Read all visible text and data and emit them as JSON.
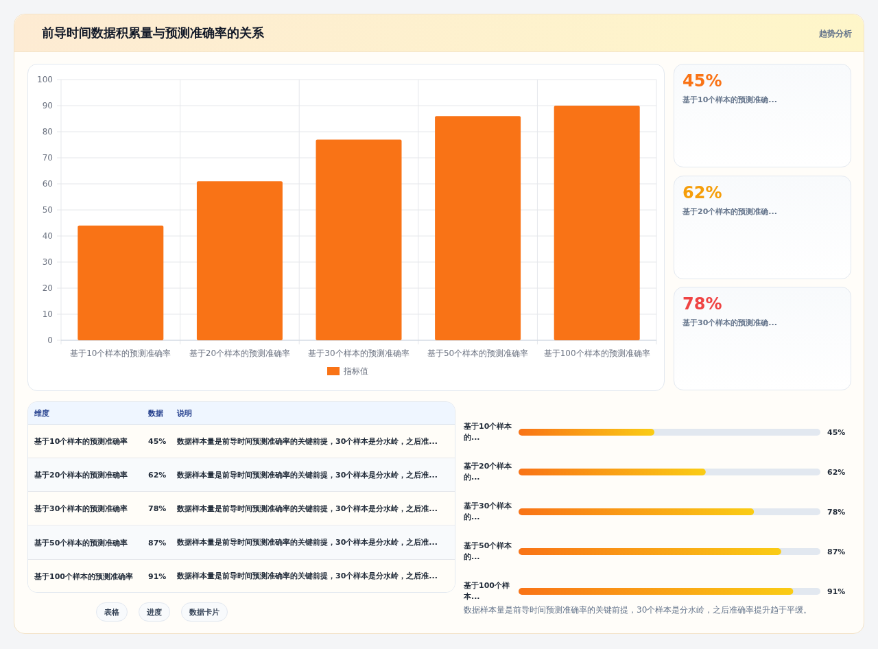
{
  "chart_data": [
    {
      "type": "bar",
      "title": "前导时间数据积累量与预测准确率的关系",
      "categories": [
        "基于10个样本的预测准确率",
        "基于20个样本的预测准确率",
        "基于30个样本的预测准确率",
        "基于50个样本的预测准确率",
        "基于100个样本的预测准确率"
      ],
      "series": [
        {
          "name": "指标值",
          "color": "#f97316",
          "values": [
            44,
            61,
            77,
            86,
            90
          ]
        }
      ],
      "ylim": [
        0,
        100
      ],
      "yticks": [
        0,
        10,
        20,
        30,
        40,
        50,
        60,
        70,
        80,
        90,
        100
      ],
      "grid": true,
      "legend": "bottom"
    },
    {
      "type": "other",
      "title": "趋势分析",
      "annotations": [
        "45%",
        "基于10个样本的预测准确...",
        "62%",
        "基于20个样本的预测准确...",
        "78%",
        "基于30个样本的预测准确..."
      ]
    },
    {
      "type": "other",
      "categories": [
        "基于10个样本的预测准确率",
        "基于20个样本的预测准确率",
        "基于30个样本的预测准确率",
        "基于50个样本的预测准确率",
        "基于100个样本的预测准确率"
      ],
      "value_labels": [
        "45%",
        "62%",
        "78%",
        "87%",
        "91%"
      ],
      "annotations": [
        "维度",
        "数据",
        "说明",
        "数据样本量是前导时间预测准确率的关键前提，30个样本是分水岭，之后准...",
        "数据样本量是前导时间预测准确率的关键前提，30个样本是分水岭，之后准...",
        "数据样本量是前导时间预测准确率的关键前提，30个样本是分水岭，之后准...",
        "数据样本量是前导时间预测准确率的关键前提，30个样本是分水岭，之后准...",
        "数据样本量是前导时间预测准确率的关键前提，30个样本是分水岭，之后准...",
        "表格",
        "进度",
        "数据卡片"
      ]
    },
    {
      "type": "bar",
      "orientation": "horizontal",
      "categories": [
        "基于10个样本的...",
        "基于20个样本的...",
        "基于30个样本的...",
        "基于50个样本的...",
        "基于100个样本..."
      ],
      "values": [
        45,
        62,
        78,
        87,
        91
      ],
      "value_labels": [
        "45%",
        "62%",
        "78%",
        "87%",
        "91%"
      ],
      "color": "#f97316",
      "xlim": [
        0,
        100
      ],
      "tick_labels": false,
      "annotations": [
        "数据样本量是前导时间预测准确率的关键前提，30个样本是分水岭，之后准确率提升趋于平缓。"
      ]
    }
  ]
}
